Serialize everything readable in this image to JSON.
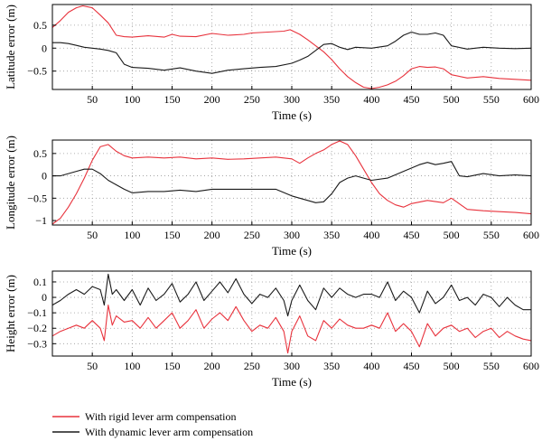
{
  "colors": {
    "rigid": "#e8323c",
    "dynamic": "#1a1a1a",
    "grid": "#9a9a9a"
  },
  "legend": {
    "rigid_label": "With rigid lever arm compensation",
    "dynamic_label": "With dynamic lever arm compensation"
  },
  "chart_data": [
    {
      "type": "line",
      "title": "",
      "xlabel": "Time (s)",
      "ylabel": "Latitude error (m)",
      "xlim": [
        0,
        600
      ],
      "ylim": [
        -0.9,
        0.95
      ],
      "xticks": [
        50,
        100,
        150,
        200,
        250,
        300,
        350,
        400,
        450,
        500,
        550,
        600
      ],
      "yticks": [
        0.5,
        0,
        -0.5
      ],
      "ytick_labels": [
        "0.5",
        "0",
        "−0.5"
      ],
      "grid": true,
      "series": [
        {
          "key": "rigid",
          "x": [
            0,
            10,
            20,
            30,
            38,
            50,
            60,
            70,
            80,
            90,
            100,
            120,
            140,
            150,
            160,
            180,
            200,
            220,
            240,
            250,
            270,
            290,
            298,
            310,
            320,
            330,
            340,
            350,
            360,
            370,
            380,
            390,
            400,
            410,
            420,
            430,
            440,
            450,
            460,
            470,
            480,
            490,
            500,
            520,
            540,
            560,
            580,
            600
          ],
          "y": [
            0.45,
            0.6,
            0.78,
            0.88,
            0.92,
            0.88,
            0.72,
            0.55,
            0.28,
            0.25,
            0.24,
            0.27,
            0.24,
            0.3,
            0.26,
            0.25,
            0.32,
            0.28,
            0.3,
            0.33,
            0.35,
            0.37,
            0.4,
            0.3,
            0.18,
            0.05,
            -0.08,
            -0.25,
            -0.45,
            -0.62,
            -0.75,
            -0.85,
            -0.88,
            -0.85,
            -0.8,
            -0.72,
            -0.6,
            -0.45,
            -0.4,
            -0.42,
            -0.41,
            -0.45,
            -0.58,
            -0.65,
            -0.62,
            -0.66,
            -0.68,
            -0.7
          ]
        },
        {
          "key": "dynamic",
          "x": [
            0,
            10,
            20,
            30,
            40,
            50,
            60,
            70,
            80,
            90,
            100,
            120,
            140,
            160,
            180,
            200,
            220,
            240,
            260,
            280,
            300,
            310,
            320,
            330,
            340,
            350,
            360,
            370,
            380,
            400,
            420,
            430,
            440,
            450,
            460,
            470,
            480,
            490,
            500,
            520,
            540,
            560,
            580,
            600
          ],
          "y": [
            0.12,
            0.12,
            0.1,
            0.06,
            0.02,
            0.0,
            -0.02,
            -0.05,
            -0.1,
            -0.35,
            -0.42,
            -0.44,
            -0.48,
            -0.43,
            -0.5,
            -0.55,
            -0.48,
            -0.45,
            -0.42,
            -0.4,
            -0.33,
            -0.26,
            -0.18,
            -0.05,
            0.08,
            0.1,
            0.02,
            -0.03,
            0.02,
            0.0,
            0.05,
            0.15,
            0.28,
            0.35,
            0.3,
            0.3,
            0.33,
            0.28,
            0.05,
            -0.02,
            0.02,
            0.0,
            -0.01,
            0.0
          ]
        }
      ]
    },
    {
      "type": "line",
      "title": "",
      "xlabel": "Time (s)",
      "ylabel": "Longitude error (m)",
      "xlim": [
        0,
        600
      ],
      "ylim": [
        -1.1,
        0.8
      ],
      "xticks": [
        50,
        100,
        150,
        200,
        250,
        300,
        350,
        400,
        450,
        500,
        550,
        600
      ],
      "yticks": [
        0.5,
        0,
        -0.5,
        -1
      ],
      "ytick_labels": [
        "0.5",
        "0",
        "−0.5",
        "−1"
      ],
      "grid": true,
      "series": [
        {
          "key": "rigid",
          "x": [
            0,
            10,
            20,
            30,
            40,
            50,
            60,
            70,
            80,
            90,
            100,
            120,
            140,
            160,
            180,
            200,
            220,
            240,
            260,
            280,
            300,
            310,
            320,
            330,
            340,
            350,
            360,
            370,
            380,
            390,
            400,
            410,
            420,
            430,
            440,
            450,
            470,
            490,
            500,
            520,
            540,
            560,
            580,
            600
          ],
          "y": [
            -1.08,
            -0.95,
            -0.7,
            -0.4,
            -0.05,
            0.35,
            0.65,
            0.7,
            0.55,
            0.45,
            0.4,
            0.42,
            0.4,
            0.42,
            0.38,
            0.4,
            0.37,
            0.38,
            0.4,
            0.42,
            0.38,
            0.28,
            0.4,
            0.5,
            0.58,
            0.7,
            0.78,
            0.7,
            0.45,
            0.15,
            -0.15,
            -0.4,
            -0.55,
            -0.65,
            -0.7,
            -0.62,
            -0.55,
            -0.6,
            -0.5,
            -0.75,
            -0.78,
            -0.8,
            -0.82,
            -0.85
          ]
        },
        {
          "key": "dynamic",
          "x": [
            0,
            10,
            20,
            30,
            40,
            50,
            60,
            70,
            80,
            90,
            100,
            120,
            140,
            160,
            180,
            200,
            220,
            240,
            260,
            280,
            300,
            310,
            320,
            330,
            340,
            350,
            360,
            370,
            380,
            390,
            400,
            420,
            440,
            460,
            470,
            480,
            490,
            500,
            510,
            520,
            540,
            560,
            580,
            600
          ],
          "y": [
            0.0,
            0.0,
            0.05,
            0.1,
            0.15,
            0.15,
            0.05,
            -0.1,
            -0.2,
            -0.3,
            -0.38,
            -0.35,
            -0.35,
            -0.32,
            -0.35,
            -0.3,
            -0.3,
            -0.3,
            -0.3,
            -0.3,
            -0.45,
            -0.5,
            -0.55,
            -0.6,
            -0.58,
            -0.4,
            -0.15,
            -0.05,
            0.0,
            -0.05,
            -0.1,
            -0.05,
            0.1,
            0.25,
            0.3,
            0.25,
            0.28,
            0.32,
            0.0,
            -0.02,
            0.05,
            0.0,
            0.02,
            0.0
          ]
        }
      ]
    },
    {
      "type": "line",
      "title": "",
      "xlabel": "Time (s)",
      "ylabel": "Height error (m)",
      "xlim": [
        0,
        600
      ],
      "ylim": [
        -0.38,
        0.17
      ],
      "xticks": [
        50,
        100,
        150,
        200,
        250,
        300,
        350,
        400,
        450,
        500,
        550,
        600
      ],
      "yticks": [
        0.1,
        0,
        -0.1,
        -0.2,
        -0.3
      ],
      "ytick_labels": [
        "0.1",
        "0",
        "−0.1",
        "−0.2",
        "−0.3"
      ],
      "grid": true,
      "series": [
        {
          "key": "rigid",
          "x": [
            0,
            10,
            20,
            30,
            40,
            50,
            60,
            65,
            70,
            75,
            80,
            90,
            100,
            110,
            120,
            130,
            140,
            150,
            160,
            170,
            180,
            190,
            200,
            210,
            220,
            230,
            240,
            250,
            260,
            270,
            280,
            290,
            295,
            300,
            310,
            320,
            330,
            340,
            350,
            360,
            370,
            380,
            390,
            400,
            410,
            420,
            430,
            440,
            450,
            460,
            470,
            480,
            490,
            500,
            510,
            520,
            530,
            540,
            550,
            560,
            570,
            580,
            590,
            600
          ],
          "y": [
            -0.25,
            -0.22,
            -0.2,
            -0.18,
            -0.2,
            -0.15,
            -0.2,
            -0.28,
            -0.05,
            -0.18,
            -0.12,
            -0.16,
            -0.15,
            -0.2,
            -0.13,
            -0.2,
            -0.15,
            -0.1,
            -0.2,
            -0.15,
            -0.08,
            -0.2,
            -0.14,
            -0.1,
            -0.15,
            -0.06,
            -0.15,
            -0.22,
            -0.18,
            -0.2,
            -0.13,
            -0.22,
            -0.36,
            -0.22,
            -0.12,
            -0.25,
            -0.28,
            -0.15,
            -0.2,
            -0.14,
            -0.18,
            -0.2,
            -0.2,
            -0.18,
            -0.2,
            -0.1,
            -0.22,
            -0.17,
            -0.22,
            -0.32,
            -0.17,
            -0.25,
            -0.2,
            -0.18,
            -0.22,
            -0.2,
            -0.26,
            -0.22,
            -0.2,
            -0.26,
            -0.22,
            -0.25,
            -0.27,
            -0.28
          ]
        },
        {
          "key": "dynamic",
          "x": [
            0,
            10,
            20,
            30,
            40,
            50,
            60,
            65,
            70,
            75,
            80,
            90,
            100,
            110,
            120,
            130,
            140,
            150,
            160,
            170,
            180,
            190,
            200,
            210,
            220,
            230,
            240,
            250,
            260,
            270,
            280,
            290,
            295,
            300,
            310,
            320,
            330,
            340,
            350,
            360,
            370,
            380,
            390,
            400,
            410,
            420,
            430,
            440,
            450,
            460,
            470,
            480,
            490,
            500,
            510,
            520,
            530,
            540,
            550,
            560,
            570,
            580,
            590,
            600
          ],
          "y": [
            -0.05,
            -0.02,
            0.02,
            0.05,
            0.02,
            0.07,
            0.05,
            -0.05,
            0.15,
            0.02,
            0.05,
            -0.02,
            0.05,
            -0.05,
            0.06,
            -0.02,
            0.02,
            0.09,
            -0.03,
            0.02,
            0.1,
            -0.02,
            0.04,
            0.1,
            0.03,
            0.12,
            0.02,
            -0.04,
            0.02,
            0.0,
            0.06,
            -0.02,
            -0.12,
            -0.02,
            0.08,
            -0.02,
            -0.08,
            0.06,
            0.0,
            0.06,
            0.02,
            0.0,
            0.02,
            0.02,
            0.0,
            0.1,
            -0.02,
            0.04,
            0.0,
            -0.1,
            0.04,
            -0.04,
            0.0,
            0.08,
            -0.02,
            0.0,
            -0.05,
            0.02,
            0.0,
            -0.06,
            0.0,
            -0.05,
            -0.08,
            -0.08
          ]
        }
      ]
    }
  ]
}
